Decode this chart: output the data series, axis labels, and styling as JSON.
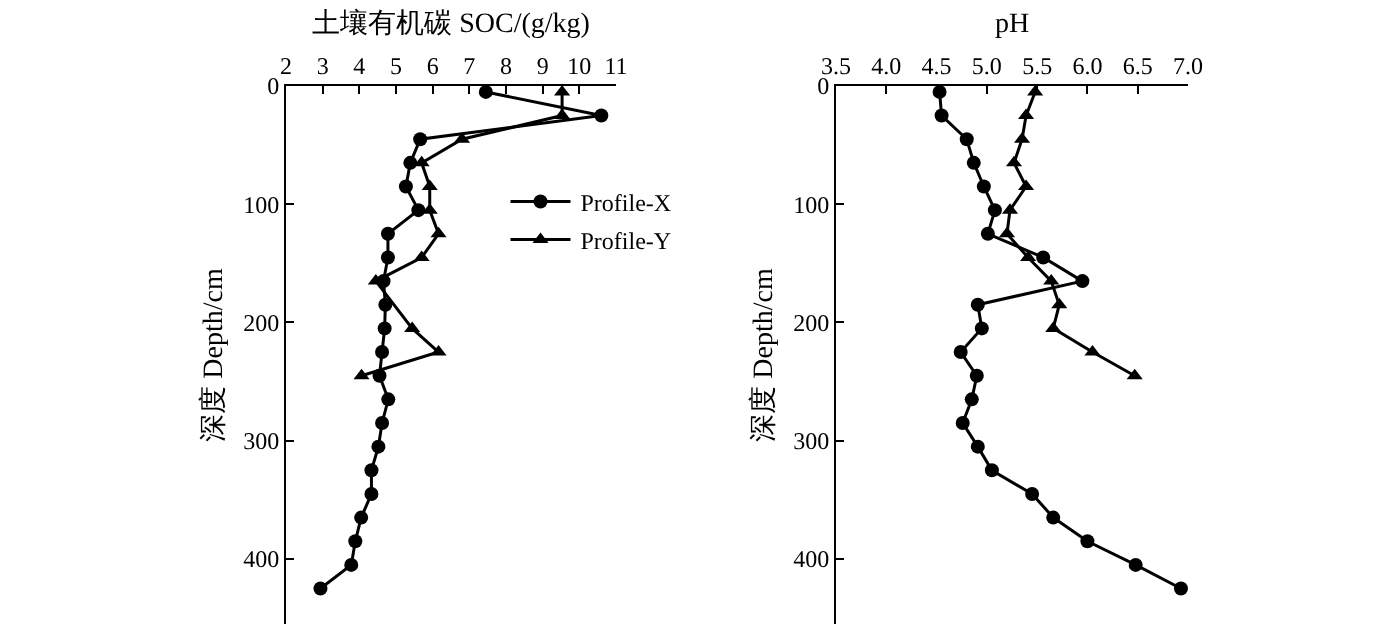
{
  "chart_data": [
    {
      "type": "line",
      "xlabel": "土壤有机碳 SOC/(g/kg)",
      "ylabel": "深度 Depth/cm",
      "xlim": [
        2,
        11
      ],
      "xticks": [
        2,
        3,
        4,
        5,
        6,
        7,
        8,
        9,
        10,
        11
      ],
      "ylim": [
        455,
        0
      ],
      "yticks": [
        0,
        100,
        200,
        300,
        400
      ],
      "grid": false,
      "legend": "right",
      "series": [
        {
          "name": "Profile-X",
          "color": "#000000",
          "marker": "circle",
          "x": [
            7.45,
            10.6,
            5.66,
            5.39,
            5.27,
            5.61,
            4.78,
            4.78,
            4.66,
            4.71,
            4.69,
            4.62,
            4.55,
            4.79,
            4.62,
            4.52,
            4.33,
            4.33,
            4.05,
            3.89,
            3.78,
            2.94
          ],
          "values": [
            5,
            25,
            45,
            65,
            85,
            105,
            125,
            145,
            165,
            185,
            205,
            225,
            245,
            265,
            285,
            305,
            325,
            345,
            365,
            385,
            405,
            425
          ]
        },
        {
          "name": "Profile-Y",
          "color": "#000000",
          "marker": "triangle",
          "x": [
            9.53,
            9.53,
            6.8,
            5.7,
            5.92,
            5.92,
            6.16,
            5.7,
            4.45,
            5.44,
            6.16,
            4.06
          ],
          "values": [
            5,
            25,
            45,
            65,
            85,
            105,
            125,
            145,
            165,
            205,
            225,
            245
          ]
        }
      ]
    },
    {
      "type": "line",
      "xlabel": "pH",
      "ylabel": "深度 Depth/cm",
      "xlim": [
        3.5,
        7
      ],
      "xticks": [
        {
          "value": 3.5,
          "label": "3.5"
        },
        {
          "value": 4,
          "label": "4.0"
        },
        {
          "value": 4.5,
          "label": "4.5"
        },
        {
          "value": 5,
          "label": "5.0"
        },
        {
          "value": 5.5,
          "label": "5.5"
        },
        {
          "value": 6,
          "label": "6.0"
        },
        {
          "value": 6.5,
          "label": "6.5"
        },
        {
          "value": 7,
          "label": "7.0"
        }
      ],
      "ylim": [
        455,
        0
      ],
      "yticks": [
        0,
        100,
        200,
        300,
        400
      ],
      "grid": false,
      "series": [
        {
          "color": "#000000",
          "marker": "circle",
          "x": [
            4.53,
            4.55,
            4.8,
            4.87,
            4.97,
            5.08,
            5.01,
            5.56,
            5.95,
            4.91,
            4.95,
            4.74,
            4.9,
            4.85,
            4.76,
            4.91,
            5.05,
            5.45,
            5.66,
            6.0,
            6.48,
            6.93
          ],
          "values": [
            5,
            25,
            45,
            65,
            85,
            105,
            125,
            145,
            165,
            185,
            205,
            225,
            245,
            265,
            285,
            305,
            325,
            345,
            365,
            385,
            405,
            425
          ]
        },
        {
          "color": "#000000",
          "marker": "triangle",
          "x": [
            5.48,
            5.39,
            5.35,
            5.27,
            5.39,
            5.23,
            5.2,
            5.41,
            5.64,
            5.72,
            5.66,
            6.05,
            6.47
          ],
          "values": [
            5,
            25,
            45,
            65,
            85,
            105,
            125,
            145,
            165,
            185,
            205,
            225,
            245
          ]
        }
      ]
    }
  ]
}
